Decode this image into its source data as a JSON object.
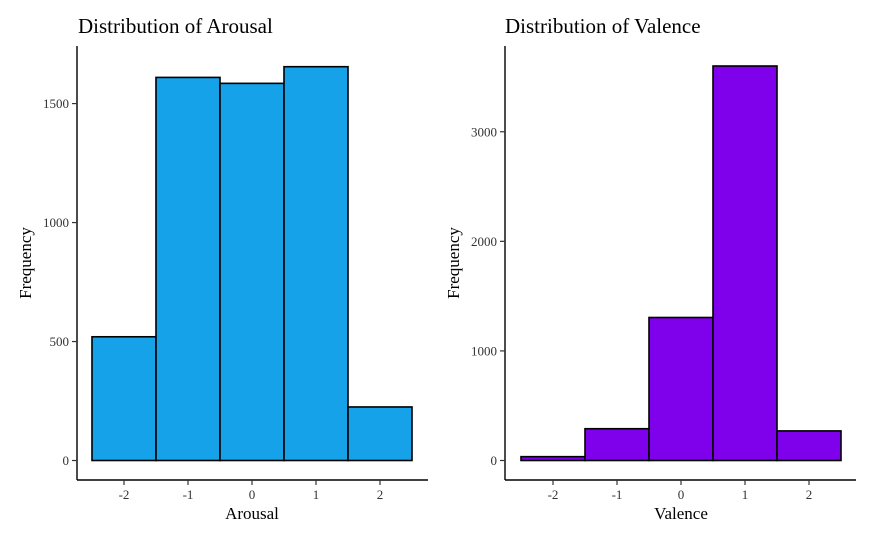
{
  "chart_data": [
    {
      "type": "bar",
      "title": "Distribution of Arousal",
      "xlabel": "Arousal",
      "ylabel": "Frequency",
      "x": [
        -2,
        -1,
        0,
        1,
        2
      ],
      "values": [
        520,
        1610,
        1585,
        1655,
        225
      ],
      "xlim": [
        -2.5,
        2.5
      ],
      "ylim": [
        0,
        1700
      ],
      "xticks": [
        -2,
        -1,
        0,
        1,
        2
      ],
      "yticks": [
        0,
        500,
        1000,
        1500
      ],
      "color": "#16A2E8",
      "grid": false,
      "legend": "none"
    },
    {
      "type": "bar",
      "title": "Distribution of Valence",
      "xlabel": "Valence",
      "ylabel": "Frequency",
      "x": [
        -2,
        -1,
        0,
        1,
        2
      ],
      "values": [
        35,
        290,
        1305,
        3600,
        270
      ],
      "xlim": [
        -2.5,
        2.5
      ],
      "ylim": [
        0,
        3600
      ],
      "xticks": [
        -2,
        -1,
        0,
        1,
        2
      ],
      "yticks": [
        0,
        1000,
        2000,
        3000
      ],
      "color": "#7F00EA",
      "grid": false,
      "legend": "none"
    }
  ]
}
